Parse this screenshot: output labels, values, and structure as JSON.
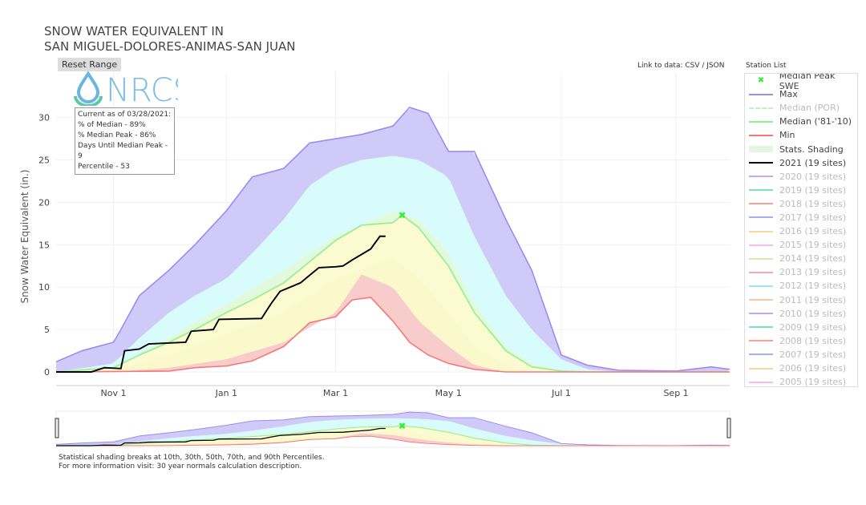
{
  "title": {
    "line1": "SNOW WATER EQUIVALENT IN",
    "line2": "SAN MIGUEL-DOLORES-ANIMAS-SAN JUAN"
  },
  "reset_label": "Reset Range",
  "logo_text": "NRCS",
  "info": {
    "l1": "Current as of 03/28/2021:",
    "l2": "% of Median - 89%",
    "l3": "% Median Peak - 86%",
    "l4": "Days Until Median Peak - 9",
    "l5": "Percentile - 53"
  },
  "link_text": "Link to data: CSV / JSON",
  "station_list": "Station List",
  "footer": {
    "l1": "Statistical shading breaks at 10th, 30th, 50th, 70th, and 90th Percentiles.",
    "l2": "For more information visit: 30 year normals calculation description."
  },
  "legend": [
    {
      "label": "Median Peak SWE",
      "color": "#33ee33",
      "kind": "marker",
      "on": true
    },
    {
      "label": "Max",
      "color": "#9a8cf0",
      "on": true
    },
    {
      "label": "Median (POR)",
      "color": "#bdf5bd",
      "kind": "dash",
      "on": false
    },
    {
      "label": "Median ('81-'10)",
      "color": "#8ef08e",
      "on": true
    },
    {
      "label": "Min",
      "color": "#f27a7a",
      "on": true
    },
    {
      "label": "Stats. Shading",
      "color": "#e3f7e0",
      "kind": "band",
      "on": true
    },
    {
      "label": "2021 (19 sites)",
      "color": "#000000",
      "on": true
    },
    {
      "label": "2020 (19 sites)",
      "color": "#c9a6f5",
      "on": false
    },
    {
      "label": "2019 (19 sites)",
      "color": "#7ee0c0",
      "on": false
    },
    {
      "label": "2018 (19 sites)",
      "color": "#f6a394",
      "on": false
    },
    {
      "label": "2017 (19 sites)",
      "color": "#a8aef5",
      "on": false
    },
    {
      "label": "2016 (19 sites)",
      "color": "#fbd89a",
      "on": false
    },
    {
      "label": "2015 (19 sites)",
      "color": "#f9b9f2",
      "on": false
    },
    {
      "label": "2014 (19 sites)",
      "color": "#d2ecb0",
      "on": false
    },
    {
      "label": "2013 (19 sites)",
      "color": "#f7a8b8",
      "on": false
    },
    {
      "label": "2012 (19 sites)",
      "color": "#9ee6f5",
      "on": false
    },
    {
      "label": "2011 (19 sites)",
      "color": "#fbc6a0",
      "on": false
    },
    {
      "label": "2010 (19 sites)",
      "color": "#c9a6f5",
      "on": false
    },
    {
      "label": "2009 (19 sites)",
      "color": "#7ee0c0",
      "on": false
    },
    {
      "label": "2008 (19 sites)",
      "color": "#f6a394",
      "on": false
    },
    {
      "label": "2007 (19 sites)",
      "color": "#a8aef5",
      "on": false
    },
    {
      "label": "2006 (19 sites)",
      "color": "#fbd89a",
      "on": false
    },
    {
      "label": "2005 (19 sites)",
      "color": "#f9b9f2",
      "on": false
    }
  ],
  "chart_data": {
    "type": "area",
    "ylabel": "Snow Water Equivalent (in.)",
    "ylim": [
      0,
      32
    ],
    "yticks": [
      0,
      5,
      10,
      15,
      20,
      25,
      30
    ],
    "xlim": [
      "2020-10-01",
      "2021-09-30"
    ],
    "xticks": [
      {
        "date": "2020-11-01",
        "label": "Nov 1"
      },
      {
        "date": "2021-01-01",
        "label": "Jan 1"
      },
      {
        "date": "2021-03-01",
        "label": "Mar 1"
      },
      {
        "date": "2021-05-01",
        "label": "May 1"
      },
      {
        "date": "2021-07-01",
        "label": "Jul 1"
      },
      {
        "date": "2021-09-01",
        "label": "Sep 1"
      }
    ],
    "grid": true,
    "legend_position": "right",
    "bands": [
      {
        "lower": "Median",
        "upper": "p70",
        "color": "#e3f9dc"
      },
      {
        "lower": "p70",
        "upper": "p90",
        "color": "#d8fbfb"
      },
      {
        "lower": "p90",
        "upper": "Max",
        "color": "#cfcaf8"
      },
      {
        "lower": "p30",
        "upper": "Median",
        "color": "#fbfad0"
      },
      {
        "lower": "p10",
        "upper": "p30",
        "color": "#fbf8cc"
      },
      {
        "lower": "Min",
        "upper": "p10",
        "color": "#f9cccc"
      }
    ],
    "series": [
      {
        "name": "Max",
        "color": "#9a8cf0",
        "points": [
          [
            "2020-10-01",
            1.2
          ],
          [
            "2020-10-15",
            2.5
          ],
          [
            "2020-11-01",
            3.5
          ],
          [
            "2020-11-05",
            5
          ],
          [
            "2020-11-15",
            9
          ],
          [
            "2020-12-01",
            12
          ],
          [
            "2020-12-15",
            15
          ],
          [
            "2021-01-01",
            19
          ],
          [
            "2021-01-15",
            23
          ],
          [
            "2021-02-01",
            24
          ],
          [
            "2021-02-15",
            27
          ],
          [
            "2021-03-01",
            27.5
          ],
          [
            "2021-03-15",
            28
          ],
          [
            "2021-04-01",
            29
          ],
          [
            "2021-04-10",
            31.2
          ],
          [
            "2021-04-20",
            30.5
          ],
          [
            "2021-05-01",
            26
          ],
          [
            "2021-05-15",
            26
          ],
          [
            "2021-06-01",
            18
          ],
          [
            "2021-06-15",
            12
          ],
          [
            "2021-07-01",
            2
          ],
          [
            "2021-07-15",
            0.8
          ],
          [
            "2021-08-01",
            0.2
          ],
          [
            "2021-09-01",
            0.1
          ],
          [
            "2021-09-20",
            0.6
          ],
          [
            "2021-09-30",
            0.3
          ]
        ]
      },
      {
        "name": "p90",
        "points": [
          [
            "2020-10-01",
            0
          ],
          [
            "2020-11-01",
            1
          ],
          [
            "2020-11-15",
            4
          ],
          [
            "2020-12-01",
            7
          ],
          [
            "2020-12-15",
            9
          ],
          [
            "2021-01-01",
            11
          ],
          [
            "2021-01-15",
            14
          ],
          [
            "2021-02-01",
            18
          ],
          [
            "2021-02-15",
            22
          ],
          [
            "2021-03-01",
            24
          ],
          [
            "2021-03-15",
            25
          ],
          [
            "2021-04-01",
            25.5
          ],
          [
            "2021-04-15",
            25
          ],
          [
            "2021-05-01",
            23
          ],
          [
            "2021-05-15",
            16
          ],
          [
            "2021-06-01",
            9
          ],
          [
            "2021-06-15",
            5
          ],
          [
            "2021-07-01",
            1.5
          ],
          [
            "2021-07-15",
            0.3
          ],
          [
            "2021-08-01",
            0
          ],
          [
            "2021-09-30",
            0
          ]
        ]
      },
      {
        "name": "p70",
        "points": [
          [
            "2020-10-01",
            0
          ],
          [
            "2020-11-01",
            0.5
          ],
          [
            "2020-12-01",
            4
          ],
          [
            "2021-01-01",
            8
          ],
          [
            "2021-02-01",
            12
          ],
          [
            "2021-03-01",
            16
          ],
          [
            "2021-04-01",
            19
          ],
          [
            "2021-04-15",
            18
          ],
          [
            "2021-05-01",
            14
          ],
          [
            "2021-05-15",
            8
          ],
          [
            "2021-06-01",
            3
          ],
          [
            "2021-06-15",
            1
          ],
          [
            "2021-07-01",
            0.2
          ],
          [
            "2021-07-15",
            0
          ],
          [
            "2021-09-30",
            0
          ]
        ]
      },
      {
        "name": "Median ('81-'10)",
        "color": "#8ef08e",
        "points": [
          [
            "2020-10-01",
            0
          ],
          [
            "2020-11-01",
            0.5
          ],
          [
            "2020-11-15",
            2
          ],
          [
            "2020-12-01",
            3.5
          ],
          [
            "2020-12-15",
            5
          ],
          [
            "2021-01-01",
            7
          ],
          [
            "2021-01-15",
            8.5
          ],
          [
            "2021-02-01",
            10.5
          ],
          [
            "2021-02-15",
            13
          ],
          [
            "2021-03-01",
            15.5
          ],
          [
            "2021-03-15",
            17.3
          ],
          [
            "2021-04-01",
            17.6
          ],
          [
            "2021-04-06",
            18.5
          ],
          [
            "2021-04-15",
            17
          ],
          [
            "2021-05-01",
            12.5
          ],
          [
            "2021-05-15",
            7
          ],
          [
            "2021-06-01",
            2.5
          ],
          [
            "2021-06-15",
            0.6
          ],
          [
            "2021-07-01",
            0.1
          ],
          [
            "2021-07-15",
            0
          ],
          [
            "2021-09-30",
            0
          ]
        ]
      },
      {
        "name": "p30",
        "points": [
          [
            "2020-10-01",
            0
          ],
          [
            "2020-11-01",
            0.2
          ],
          [
            "2020-12-01",
            2
          ],
          [
            "2021-01-01",
            4.5
          ],
          [
            "2021-02-01",
            7
          ],
          [
            "2021-03-01",
            11
          ],
          [
            "2021-04-01",
            13.5
          ],
          [
            "2021-04-15",
            11
          ],
          [
            "2021-05-01",
            7
          ],
          [
            "2021-05-15",
            3
          ],
          [
            "2021-06-01",
            0.8
          ],
          [
            "2021-06-15",
            0
          ],
          [
            "2021-09-30",
            0
          ]
        ]
      },
      {
        "name": "p10",
        "points": [
          [
            "2020-10-01",
            0
          ],
          [
            "2020-11-01",
            0
          ],
          [
            "2020-12-01",
            0.5
          ],
          [
            "2021-01-01",
            1.5
          ],
          [
            "2021-02-01",
            3.5
          ],
          [
            "2021-03-01",
            7
          ],
          [
            "2021-03-15",
            11.5
          ],
          [
            "2021-04-01",
            10
          ],
          [
            "2021-04-15",
            6
          ],
          [
            "2021-05-01",
            3
          ],
          [
            "2021-05-15",
            0.8
          ],
          [
            "2021-06-01",
            0
          ],
          [
            "2021-09-30",
            0
          ]
        ]
      },
      {
        "name": "Min",
        "color": "#f27a7a",
        "points": [
          [
            "2020-10-01",
            0
          ],
          [
            "2020-12-01",
            0.1
          ],
          [
            "2020-12-15",
            0.5
          ],
          [
            "2021-01-01",
            0.7
          ],
          [
            "2021-01-15",
            1.3
          ],
          [
            "2021-02-01",
            3
          ],
          [
            "2021-02-15",
            5.8
          ],
          [
            "2021-03-01",
            6.5
          ],
          [
            "2021-03-10",
            8.5
          ],
          [
            "2021-03-20",
            8.8
          ],
          [
            "2021-04-01",
            6
          ],
          [
            "2021-04-10",
            3.5
          ],
          [
            "2021-04-20",
            2
          ],
          [
            "2021-05-01",
            1
          ],
          [
            "2021-05-15",
            0.3
          ],
          [
            "2021-06-01",
            0
          ],
          [
            "2021-09-30",
            0
          ]
        ]
      },
      {
        "name": "2021 (19 sites)",
        "color": "#000000",
        "points": [
          [
            "2020-10-01",
            0
          ],
          [
            "2020-10-20",
            0
          ],
          [
            "2020-10-27",
            0.5
          ],
          [
            "2020-11-05",
            0.4
          ],
          [
            "2020-11-07",
            2.5
          ],
          [
            "2020-11-15",
            2.7
          ],
          [
            "2020-11-20",
            3.3
          ],
          [
            "2020-12-10",
            3.5
          ],
          [
            "2020-12-13",
            4.8
          ],
          [
            "2020-12-25",
            5
          ],
          [
            "2020-12-28",
            6.2
          ],
          [
            "2021-01-20",
            6.3
          ],
          [
            "2021-01-25",
            8.0
          ],
          [
            "2021-01-30",
            9.5
          ],
          [
            "2021-02-10",
            10.5
          ],
          [
            "2021-02-20",
            12.3
          ],
          [
            "2021-03-01",
            12.4
          ],
          [
            "2021-03-05",
            12.5
          ],
          [
            "2021-03-10",
            13.2
          ],
          [
            "2021-03-20",
            14.5
          ],
          [
            "2021-03-25",
            16
          ],
          [
            "2021-03-28",
            16
          ]
        ]
      }
    ],
    "median_peak": {
      "date": "2021-04-06",
      "value": 18.5,
      "label": "Median Peak SWE"
    }
  }
}
